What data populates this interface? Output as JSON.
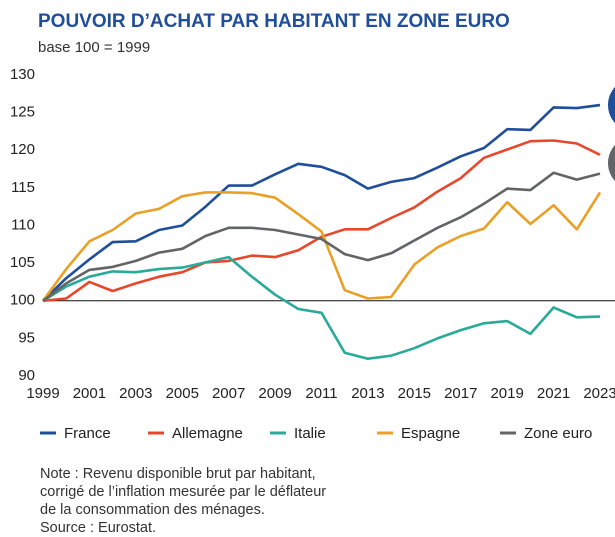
{
  "chart_data": {
    "type": "line",
    "title": "POUVOIR D’ACHAT PAR HABITANT EN ZONE EURO",
    "subtitle": "base 100 = 1999",
    "x": [
      1999,
      2000,
      2001,
      2002,
      2003,
      2004,
      2005,
      2006,
      2007,
      2008,
      2009,
      2010,
      2011,
      2012,
      2013,
      2014,
      2015,
      2016,
      2017,
      2018,
      2019,
      2020,
      2021,
      2022,
      2023
    ],
    "xlim": [
      1999,
      2023
    ],
    "xticks": [
      1999,
      2001,
      2003,
      2005,
      2007,
      2009,
      2011,
      2013,
      2015,
      2017,
      2019,
      2021,
      2023
    ],
    "ylim": [
      90,
      130
    ],
    "yticks": [
      90,
      95,
      100,
      105,
      110,
      115,
      120,
      125,
      130
    ],
    "reference_line": 100,
    "series": [
      {
        "name": "France",
        "color": "#1f4e9a",
        "values": [
          100,
          103,
          105.5,
          107.8,
          107.9,
          109.4,
          110,
          112.5,
          115.3,
          115.3,
          116.8,
          118.2,
          117.8,
          116.7,
          114.9,
          115.8,
          116.3,
          117.7,
          119.2,
          120.3,
          122.8,
          122.7,
          125.7,
          125.6,
          126
        ]
      },
      {
        "name": "Allemagne",
        "color": "#e8472b",
        "values": [
          100,
          100.3,
          102.5,
          101.3,
          102.3,
          103.2,
          103.8,
          105.1,
          105.3,
          106,
          105.8,
          106.7,
          108.5,
          109.5,
          109.5,
          111,
          112.4,
          114.5,
          116.3,
          119,
          120.1,
          121.2,
          121.3,
          120.9,
          119.4
        ]
      },
      {
        "name": "Italie",
        "color": "#2aaa9a",
        "values": [
          100,
          101.9,
          103.2,
          103.9,
          103.8,
          104.2,
          104.4,
          105.1,
          105.8,
          103.2,
          100.8,
          98.9,
          98.4,
          93.1,
          92.3,
          92.7,
          93.7,
          95,
          96.1,
          97,
          97.3,
          95.6,
          99.1,
          97.8,
          97.9
        ]
      },
      {
        "name": "Espagne",
        "color": "#eaa024",
        "values": [
          100,
          104.2,
          107.9,
          109.4,
          111.6,
          112.2,
          113.9,
          114.4,
          114.4,
          114.3,
          113.7,
          111.5,
          109.2,
          101.4,
          100.3,
          100.5,
          104.8,
          107.1,
          108.6,
          109.6,
          113.1,
          110.2,
          112.7,
          109.5,
          114.4
        ]
      },
      {
        "name": "Zone euro",
        "color": "#636466",
        "values": [
          100,
          102.3,
          104.1,
          104.5,
          105.3,
          106.4,
          106.9,
          108.6,
          109.7,
          109.7,
          109.4,
          108.8,
          108.2,
          106.2,
          105.4,
          106.3,
          108,
          109.7,
          111.1,
          112.9,
          114.9,
          114.7,
          117,
          116.1,
          116.9
        ]
      }
    ],
    "notes": [
      "Note : Revenu disponible brut par habitant,",
      "corrigé de l’inflation mesurée par le déflateur",
      "de la consommation des ménages.",
      "Source : Eurostat."
    ]
  }
}
